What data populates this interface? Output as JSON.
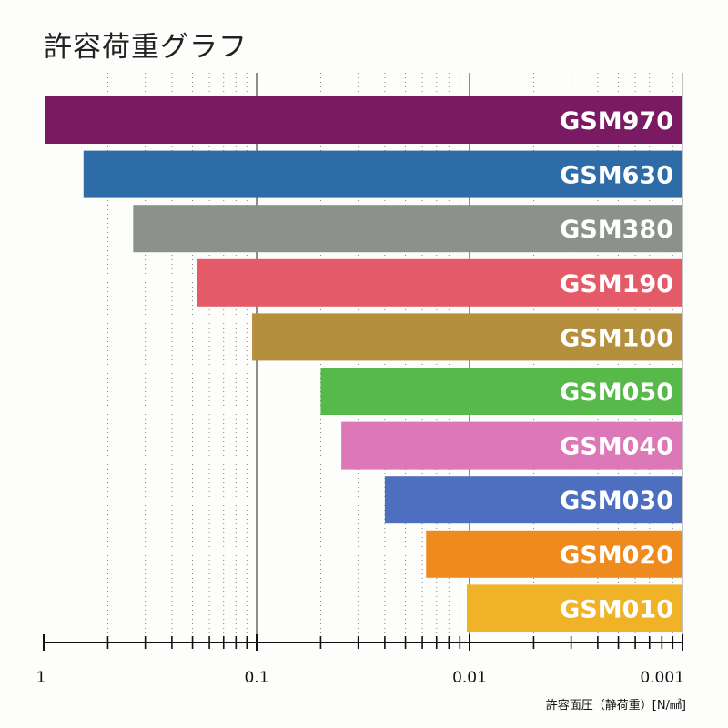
{
  "chart_data": {
    "type": "bar",
    "orientation": "horizontal",
    "title": "許容荷重グラフ",
    "xlabel": "許容面圧（静荷重）[N/㎟]",
    "x_scale": "log",
    "x_reversed": true,
    "xlim": [
      1,
      0.001
    ],
    "x_ticks": [
      "1",
      "0.1",
      "0.01",
      "0.001"
    ],
    "grid": true,
    "bars": [
      {
        "label": "GSM970",
        "value": 0.99,
        "color": "#7a1a63"
      },
      {
        "label": "GSM630",
        "value": 0.65,
        "color": "#2e6ca8"
      },
      {
        "label": "GSM380",
        "value": 0.38,
        "color": "#8c918c"
      },
      {
        "label": "GSM190",
        "value": 0.19,
        "color": "#e55a68"
      },
      {
        "label": "GSM100",
        "value": 0.105,
        "color": "#b48f3c"
      },
      {
        "label": "GSM050",
        "value": 0.05,
        "color": "#56b94a"
      },
      {
        "label": "GSM040",
        "value": 0.04,
        "color": "#dd78b8"
      },
      {
        "label": "GSM030",
        "value": 0.025,
        "color": "#4e6fc0"
      },
      {
        "label": "GSM020",
        "value": 0.016,
        "color": "#ef8a1f"
      },
      {
        "label": "GSM010",
        "value": 0.0103,
        "color": "#f0b328"
      }
    ]
  }
}
